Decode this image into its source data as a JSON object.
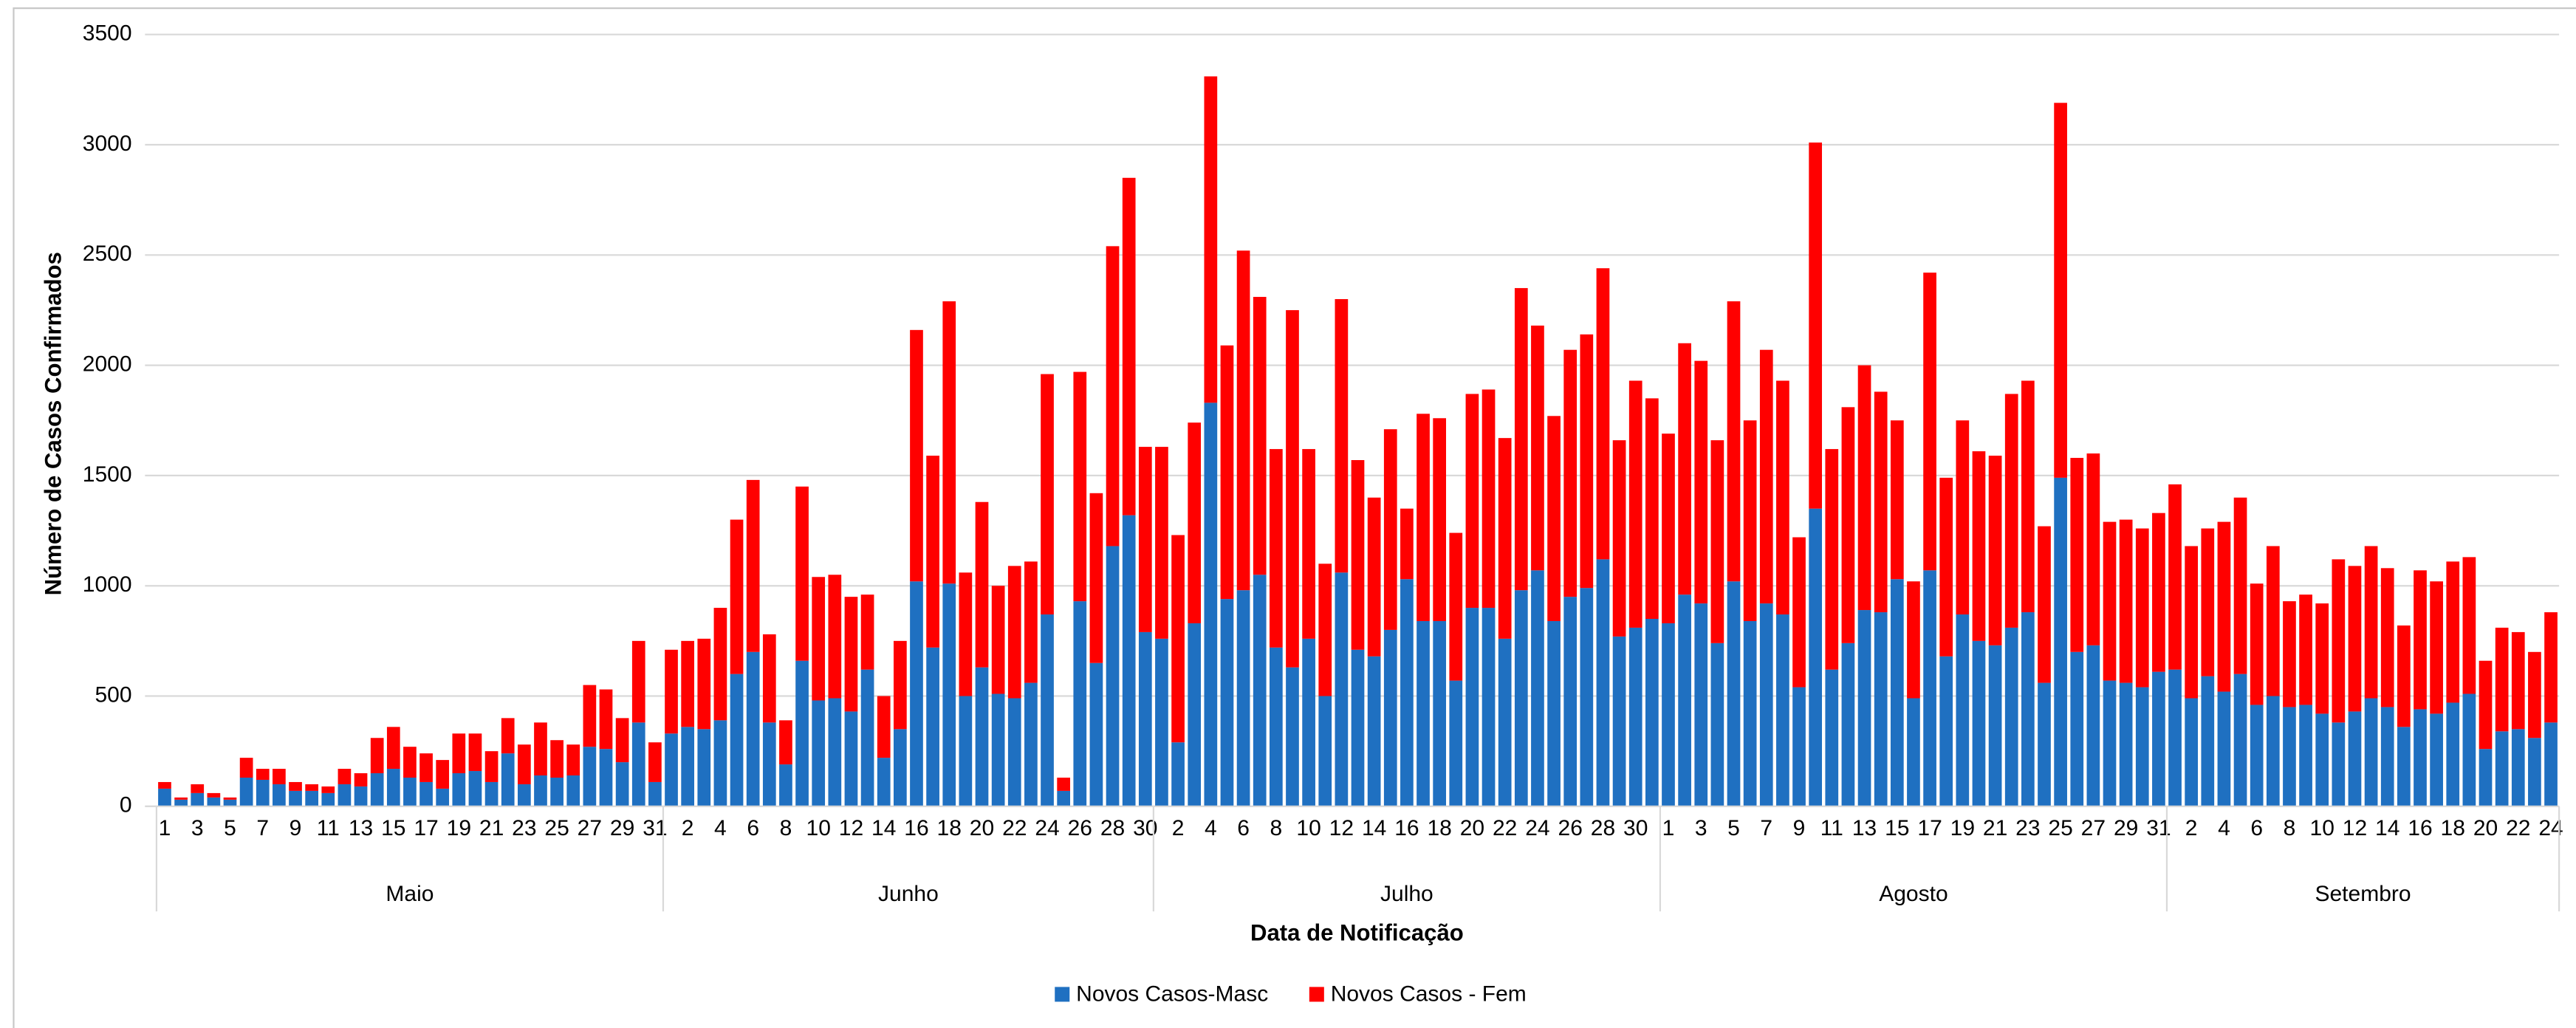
{
  "chart_data": {
    "type": "stacked-bar",
    "x_title": "Data de Notificação",
    "y_title": "Número de Casos Confirmados",
    "categories": [
      "1",
      null,
      "3",
      null,
      "5",
      null,
      "7",
      null,
      "9",
      null,
      "11",
      null,
      "13",
      null,
      "15",
      null,
      "17",
      null,
      "19",
      null,
      "21",
      null,
      "23",
      null,
      "25",
      null,
      "27",
      null,
      "29",
      null,
      "31",
      null,
      "2",
      null,
      "4",
      null,
      "6",
      null,
      "8",
      null,
      "10",
      null,
      "12",
      null,
      "14",
      null,
      "16",
      null,
      "18",
      null,
      "20",
      null,
      "22",
      null,
      "24",
      null,
      "26",
      null,
      "28",
      null,
      "30",
      null,
      "2",
      null,
      "4",
      null,
      "6",
      null,
      "8",
      null,
      "10",
      null,
      "12",
      null,
      "14",
      null,
      "16",
      null,
      "18",
      null,
      "20",
      null,
      "22",
      null,
      "24",
      null,
      "26",
      null,
      "28",
      null,
      "30",
      null,
      "1",
      null,
      "3",
      null,
      "5",
      null,
      "7",
      null,
      "9",
      null,
      "11",
      null,
      "13",
      null,
      "15",
      null,
      "17",
      null,
      "19",
      null,
      "21",
      null,
      "23",
      null,
      "25",
      null,
      "27",
      null,
      "29",
      null,
      "31",
      null,
      "2",
      null,
      "4",
      null,
      "6",
      null,
      "8",
      null,
      "10",
      null,
      "12",
      null,
      "14",
      null,
      "16",
      null,
      "18",
      null,
      "20",
      null,
      "22",
      null,
      "24"
    ],
    "groups": [
      {
        "name": "Maio",
        "span": 31
      },
      {
        "name": "Junho",
        "span": 30
      },
      {
        "name": "Julho",
        "span": 31
      },
      {
        "name": "Agosto",
        "span": 31
      },
      {
        "name": "Setembro",
        "span": 24
      }
    ],
    "series": [
      {
        "name": "Novos Casos-Masc",
        "color": "#1f70c1",
        "values": [
          80,
          30,
          60,
          40,
          30,
          130,
          120,
          100,
          70,
          70,
          60,
          100,
          90,
          150,
          170,
          130,
          110,
          80,
          150,
          160,
          110,
          240,
          100,
          140,
          130,
          140,
          270,
          260,
          200,
          380,
          110,
          330,
          360,
          350,
          390,
          600,
          700,
          380,
          190,
          660,
          480,
          490,
          430,
          620,
          220,
          350,
          1020,
          720,
          1010,
          500,
          630,
          510,
          490,
          560,
          870,
          70,
          930,
          650,
          1180,
          1320,
          790,
          760,
          290,
          830,
          1830,
          940,
          980,
          1050,
          720,
          630,
          760,
          500,
          1060,
          710,
          680,
          800,
          1030,
          840,
          840,
          570,
          900,
          900,
          760,
          980,
          1070,
          840,
          950,
          990,
          1120,
          770,
          810,
          850,
          830,
          960,
          920,
          740,
          1020,
          840,
          920,
          870,
          540,
          1350,
          620,
          740,
          890,
          880,
          1030,
          490,
          1070,
          680,
          870,
          750,
          730,
          810,
          880,
          560,
          1490,
          700,
          730,
          570,
          560,
          540,
          610,
          620,
          490,
          590,
          520,
          600,
          460,
          500,
          450,
          460,
          420,
          380,
          430,
          490,
          450,
          360,
          440,
          420,
          470,
          510,
          260,
          340,
          350,
          310,
          380
        ]
      },
      {
        "name": "Novos Casos - Fem",
        "color": "#ff0000",
        "values": [
          30,
          10,
          40,
          20,
          10,
          90,
          50,
          70,
          40,
          30,
          30,
          70,
          60,
          160,
          190,
          140,
          130,
          130,
          180,
          170,
          140,
          160,
          180,
          240,
          170,
          140,
          280,
          270,
          200,
          370,
          180,
          380,
          390,
          410,
          510,
          700,
          780,
          400,
          200,
          790,
          560,
          560,
          520,
          340,
          280,
          400,
          1140,
          870,
          1280,
          560,
          750,
          490,
          600,
          550,
          1090,
          60,
          1040,
          770,
          1360,
          1530,
          840,
          870,
          940,
          910,
          1480,
          1150,
          1540,
          1260,
          900,
          1620,
          860,
          600,
          1240,
          860,
          720,
          910,
          320,
          940,
          920,
          670,
          970,
          990,
          910,
          1370,
          1110,
          930,
          1120,
          1150,
          1320,
          890,
          1120,
          1000,
          860,
          1140,
          1100,
          920,
          1270,
          910,
          1150,
          1060,
          680,
          1660,
          1000,
          1070,
          1110,
          1000,
          720,
          530,
          1350,
          810,
          880,
          860,
          860,
          1060,
          1050,
          710,
          1700,
          880,
          870,
          720,
          740,
          720,
          720,
          840,
          690,
          670,
          770,
          800,
          550,
          680,
          480,
          500,
          500,
          740,
          660,
          690,
          630,
          460,
          630,
          600,
          640,
          620,
          400,
          470,
          440,
          390,
          500
        ]
      }
    ],
    "ylim": [
      0,
      3500
    ],
    "yticks": [
      0,
      500,
      1000,
      1500,
      2000,
      2500,
      3000,
      3500
    ],
    "grid": true,
    "legend": "bottom"
  }
}
